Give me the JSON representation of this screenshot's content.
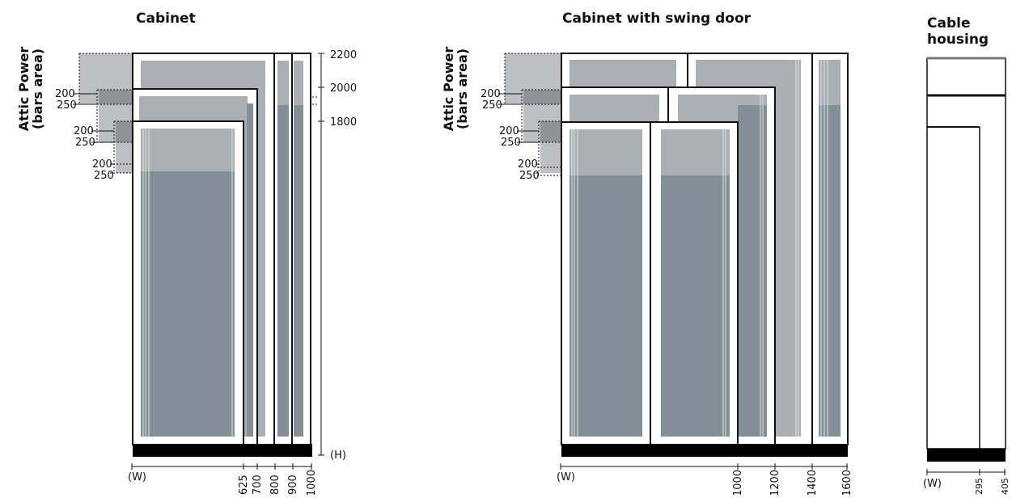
{
  "panels": {
    "cabinet": {
      "title": "Cabinet",
      "side_label_line1": "Attic Power",
      "side_label_line2": "(bars area)",
      "attic_labels": [
        "200",
        "250",
        "200",
        "250",
        "200",
        "250"
      ],
      "height_ticks": [
        "2200",
        "2000",
        "1800"
      ],
      "height_axis_label": "(H)",
      "width_axis_label": "(W)",
      "width_ticks": [
        "625",
        "700",
        "800",
        "900",
        "1000"
      ]
    },
    "swing_door": {
      "title": "Cabinet with swing door",
      "side_label_line1": "Attic Power",
      "side_label_line2": "(bars area)",
      "attic_labels": [
        "200",
        "250",
        "200",
        "250",
        "200",
        "250"
      ],
      "width_axis_label": "(W)",
      "width_ticks": [
        "1000",
        "1200",
        "1400",
        "1600"
      ]
    },
    "cable_housing": {
      "title_line1": "Cable",
      "title_line2": "housing",
      "width_axis_label": "(W)",
      "width_ticks": [
        "295",
        "405"
      ]
    }
  },
  "colors": {
    "glass_light": "#a9afb3",
    "glass_dark": "#838f96",
    "attic_light": "#bdbfc2",
    "attic_dark": "#8f9296",
    "frame": "#111111",
    "plinth": "#000000"
  }
}
